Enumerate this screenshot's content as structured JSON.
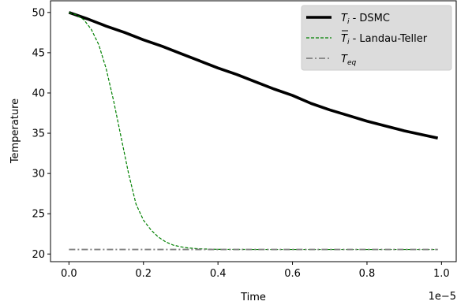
{
  "chart_data": {
    "type": "line",
    "xlabel": "Time",
    "ylabel": "Temperature",
    "x_offset_label": "1e−5",
    "xlim": [
      -0.0495,
      1.0395
    ],
    "ylim": [
      19.05,
      51.45
    ],
    "x_ticks": [
      0.0,
      0.2,
      0.4,
      0.6,
      0.8,
      1.0
    ],
    "x_tick_labels": [
      "0.0",
      "0.2",
      "0.4",
      "0.6",
      "0.8",
      "1.0"
    ],
    "y_ticks": [
      20,
      25,
      30,
      35,
      40,
      45,
      50
    ],
    "y_tick_labels": [
      "20",
      "25",
      "30",
      "35",
      "40",
      "45",
      "50"
    ],
    "grid": false,
    "legend_position": "top-right",
    "series": [
      {
        "name": "T_i - DSMC",
        "legend_main": "T",
        "legend_sub": "i",
        "legend_rest": " - DSMC",
        "overline": false,
        "color": "#000000",
        "style": "solid",
        "x": [
          0.0,
          0.05,
          0.1,
          0.15,
          0.2,
          0.25,
          0.3,
          0.35,
          0.4,
          0.45,
          0.5,
          0.55,
          0.6,
          0.65,
          0.7,
          0.75,
          0.8,
          0.85,
          0.9,
          0.95,
          0.99
        ],
        "y": [
          50.0,
          49.2,
          48.3,
          47.5,
          46.6,
          45.8,
          44.9,
          44.0,
          43.1,
          42.3,
          41.4,
          40.5,
          39.7,
          38.7,
          37.9,
          37.2,
          36.5,
          35.9,
          35.3,
          34.8,
          34.4
        ]
      },
      {
        "name": "T̄_i - Landau-Teller",
        "legend_main": "T",
        "legend_sub": "i",
        "legend_rest": " - Landau-Teller",
        "overline": true,
        "color": "#008000",
        "style": "dashed",
        "x": [
          0.0,
          0.02,
          0.04,
          0.06,
          0.08,
          0.1,
          0.12,
          0.14,
          0.16,
          0.18,
          0.2,
          0.22,
          0.24,
          0.26,
          0.28,
          0.3,
          0.32,
          0.34,
          0.36,
          0.38,
          0.4,
          0.45,
          0.5,
          0.6,
          0.7,
          0.8,
          0.9,
          0.99
        ],
        "y": [
          50.0,
          49.7,
          49.1,
          47.9,
          46.0,
          43.0,
          39.0,
          34.5,
          30.0,
          26.2,
          24.2,
          23.0,
          22.1,
          21.5,
          21.1,
          20.9,
          20.75,
          20.68,
          20.63,
          20.6,
          20.58,
          20.57,
          20.56,
          20.56,
          20.56,
          20.56,
          20.56,
          20.56
        ]
      },
      {
        "name": "T_eq",
        "legend_main": "T",
        "legend_sub": "eq",
        "legend_rest": "",
        "overline": false,
        "color": "#808080",
        "style": "dashdot",
        "x": [
          0.0,
          0.99
        ],
        "y": [
          20.56,
          20.56
        ]
      }
    ]
  }
}
